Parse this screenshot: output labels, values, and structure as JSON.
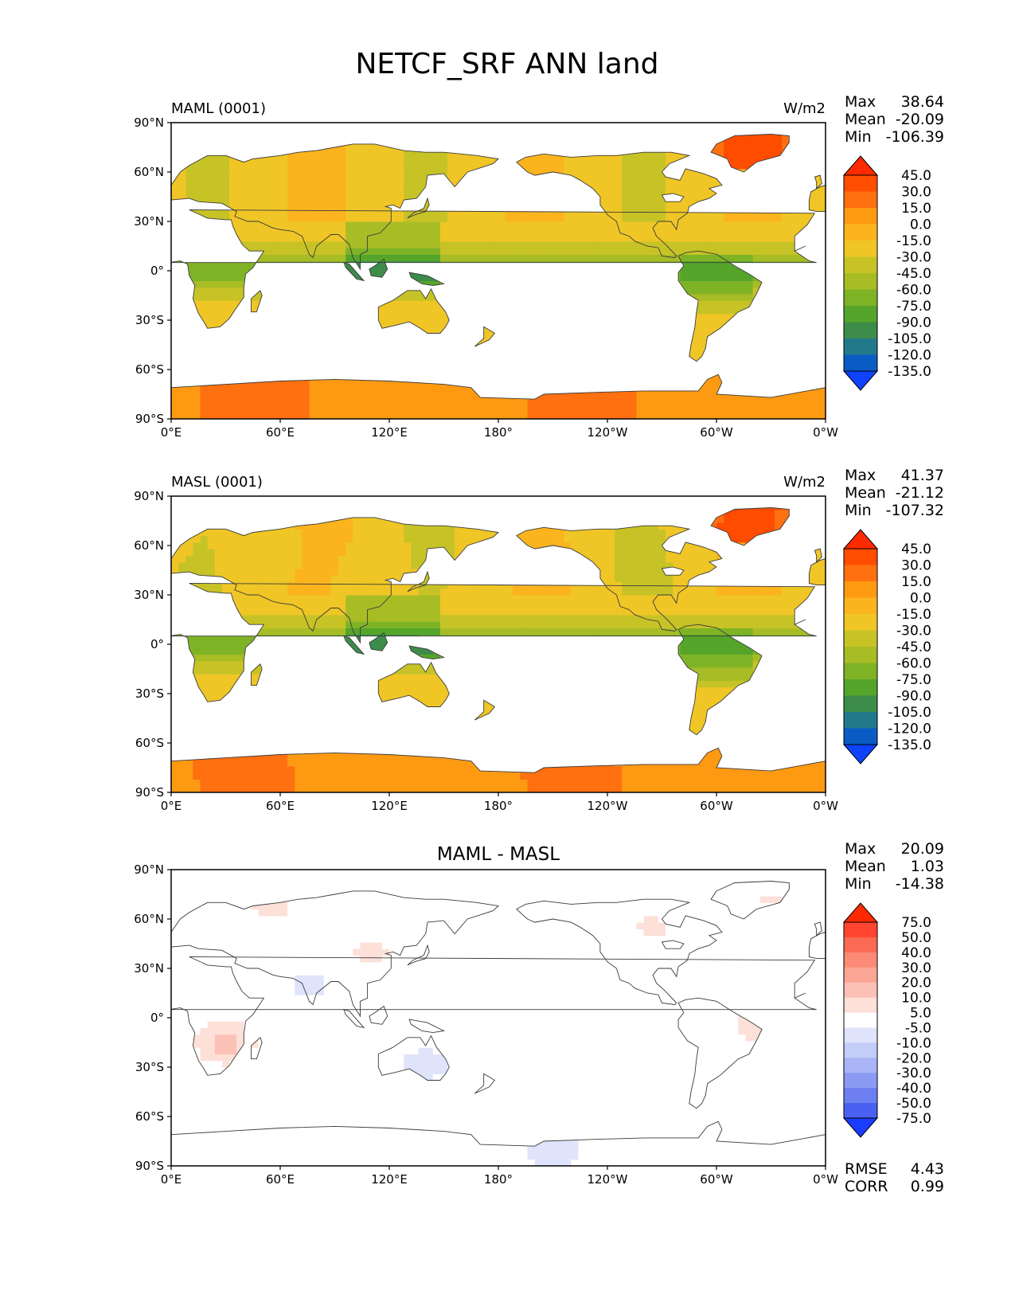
{
  "figure": {
    "title": "NETCF_SRF ANN land",
    "x_ticks": [
      "0°E",
      "60°E",
      "120°E",
      "180°",
      "120°W",
      "60°W",
      "0°W"
    ],
    "y_ticks": [
      "90°N",
      "60°N",
      "30°N",
      "0°",
      "30°S",
      "60°S",
      "90°S"
    ],
    "colors": {
      "ocean": "#ffffff",
      "coast": "#3a3a3a",
      "frame": "#000000"
    }
  },
  "chart_data": [
    {
      "type": "heatmap",
      "id": "test",
      "left_title": "MAML (0001)",
      "center_title": "",
      "right_title": "W/m2",
      "xlim": [
        0,
        360
      ],
      "ylim": [
        -90,
        90
      ],
      "stats": {
        "max_label": "Max",
        "max": "38.64",
        "mean_label": "Mean",
        "mean": "-20.09",
        "min_label": "Min",
        "min": "-106.39"
      },
      "colorbar": {
        "levels": [
          "45.0",
          "30.0",
          "15.0",
          "0.0",
          "-15.0",
          "-30.0",
          "-45.0",
          "-60.0",
          "-75.0",
          "-90.0",
          "-105.0",
          "-120.0",
          "-135.0"
        ],
        "colors": [
          "#ff2a00",
          "#ff4d00",
          "#ff7010",
          "#fd9a12",
          "#fbb41e",
          "#efc626",
          "#c7c327",
          "#a8bc25",
          "#7fb326",
          "#55a52b",
          "#3d8c4a",
          "#207a8a",
          "#0a5bc4",
          "#0f42ff"
        ]
      }
    },
    {
      "type": "heatmap",
      "id": "reference",
      "left_title": "MASL (0001)",
      "center_title": "",
      "right_title": "W/m2",
      "xlim": [
        0,
        360
      ],
      "ylim": [
        -90,
        90
      ],
      "stats": {
        "max_label": "Max",
        "max": "41.37",
        "mean_label": "Mean",
        "mean": "-21.12",
        "min_label": "Min",
        "min": "-107.32"
      },
      "colorbar": {
        "levels": [
          "45.0",
          "30.0",
          "15.0",
          "0.0",
          "-15.0",
          "-30.0",
          "-45.0",
          "-60.0",
          "-75.0",
          "-90.0",
          "-105.0",
          "-120.0",
          "-135.0"
        ],
        "colors": [
          "#ff2a00",
          "#ff4d00",
          "#ff7010",
          "#fd9a12",
          "#fbb41e",
          "#efc626",
          "#c7c327",
          "#a8bc25",
          "#7fb326",
          "#55a52b",
          "#3d8c4a",
          "#207a8a",
          "#0a5bc4",
          "#0f42ff"
        ]
      }
    },
    {
      "type": "heatmap",
      "id": "difference",
      "left_title": "",
      "center_title": "MAML - MASL",
      "right_title": "",
      "xlim": [
        0,
        360
      ],
      "ylim": [
        -90,
        90
      ],
      "stats": {
        "max_label": "Max",
        "max": "20.09",
        "mean_label": "Mean",
        "mean": "1.03",
        "min_label": "Min",
        "min": "-14.38"
      },
      "colorbar": {
        "levels": [
          "75.0",
          "50.0",
          "40.0",
          "30.0",
          "20.0",
          "10.0",
          "5.0",
          "-5.0",
          "-10.0",
          "-20.0",
          "-30.0",
          "-40.0",
          "-50.0",
          "-75.0"
        ],
        "colors": [
          "#ff2a00",
          "#ff4530",
          "#fb6a55",
          "#fb8a76",
          "#fba596",
          "#fcc1b6",
          "#fde0d8",
          "#ffffff",
          "#dfe4fb",
          "#c4cdf8",
          "#a8b4f5",
          "#8b9af2",
          "#6d7ff0",
          "#4a60f2",
          "#1a3cff"
        ]
      },
      "rmse_label": "RMSE",
      "rmse": "4.43",
      "corr_label": "CORR",
      "corr": "0.99"
    }
  ]
}
